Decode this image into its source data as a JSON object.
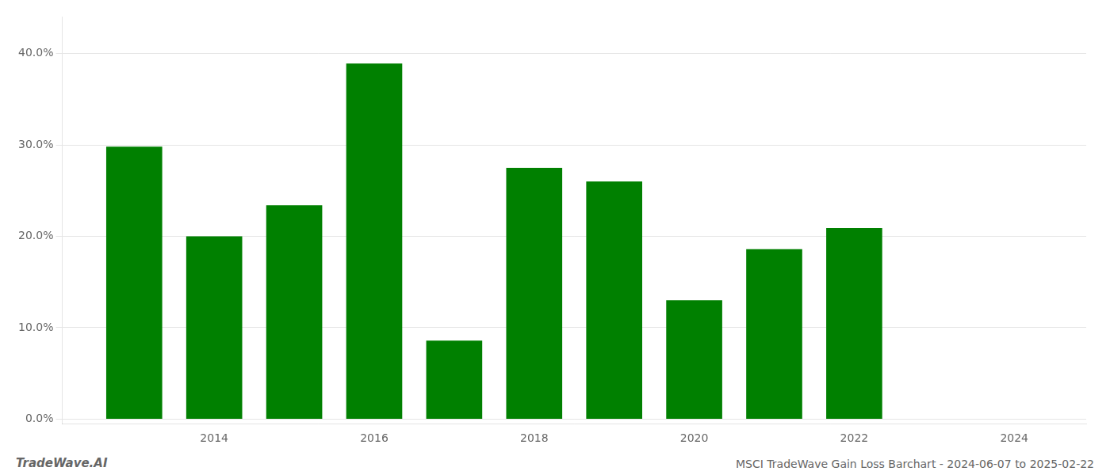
{
  "chart_data": {
    "type": "bar",
    "x": [
      2013,
      2014,
      2015,
      2016,
      2017,
      2018,
      2019,
      2020,
      2021,
      2022
    ],
    "values": [
      0.298,
      0.2,
      0.234,
      0.389,
      0.086,
      0.275,
      0.26,
      0.13,
      0.186,
      0.209
    ],
    "color": "#008000",
    "xlim": [
      2012.1,
      2024.9
    ],
    "xticks": [
      2014,
      2016,
      2018,
      2020,
      2022,
      2024
    ],
    "ylim": [
      -0.005,
      0.44
    ],
    "yticks": [
      {
        "value": 0.0,
        "label": "0.0%"
      },
      {
        "value": 0.1,
        "label": "10.0%"
      },
      {
        "value": 0.2,
        "label": "20.0%"
      },
      {
        "value": 0.3,
        "label": "30.0%"
      },
      {
        "value": 0.4,
        "label": "40.0%"
      }
    ],
    "grid": true,
    "annotations": [
      "TradeWave.AI",
      "MSCI TradeWave Gain Loss Barchart - 2024-06-07 to 2025-02-22"
    ]
  }
}
